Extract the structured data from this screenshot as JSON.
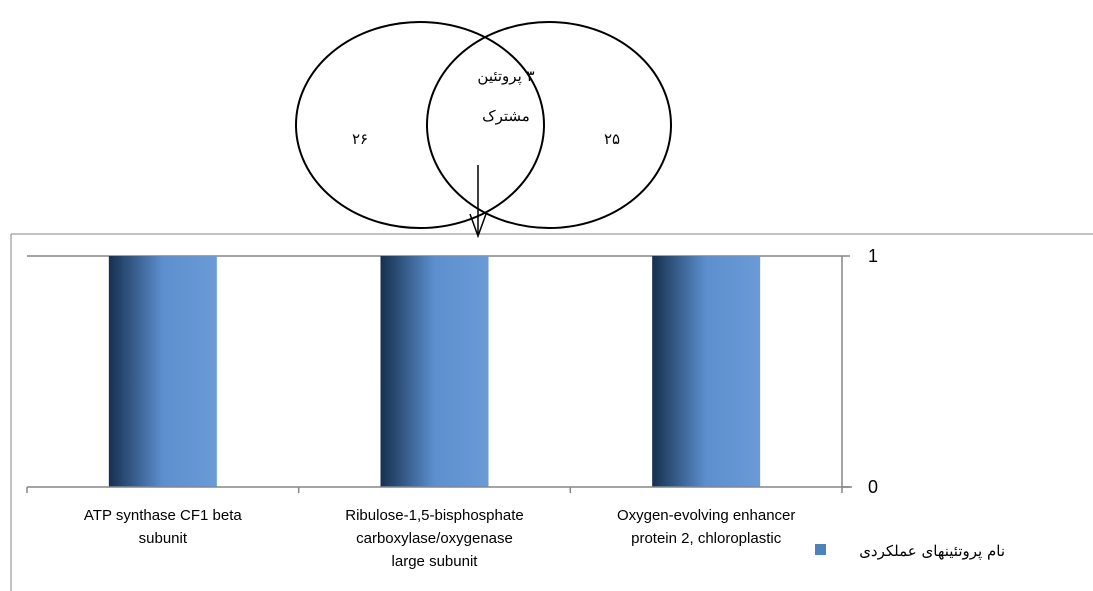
{
  "venn": {
    "left_count": "۲۶",
    "right_count": "۲۵",
    "overlap_line1": "۳ پروتئین",
    "overlap_line2": "مشترک"
  },
  "colors": {
    "bar_light": "#6a9bd6",
    "bar_dark": "#16304f",
    "legend_swatch": "#4f81bd",
    "axis": "#868686",
    "grid": "#868686",
    "outline": "#000000"
  },
  "chart_data": {
    "type": "bar",
    "categories": [
      [
        "ATP synthase CF1 beta",
        "subunit"
      ],
      [
        "Ribulose-1,5-bisphosphate",
        "carboxylase/oxygenase",
        "large subunit"
      ],
      [
        "Oxygen-evolving enhancer",
        "protein 2, chloroplastic"
      ]
    ],
    "series": [
      {
        "name": "نام پروتئینهای عملکردی",
        "values": [
          1,
          1,
          1
        ]
      }
    ],
    "y_ticks": [
      "0",
      "1"
    ],
    "ylim": [
      0,
      1
    ],
    "y_axis_side": "right",
    "grid": true,
    "legend_position": "bottom-right"
  }
}
